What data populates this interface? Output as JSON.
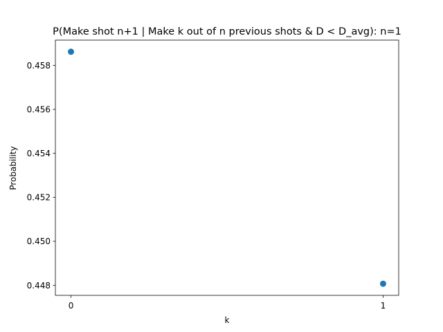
{
  "chart_data": {
    "type": "scatter",
    "title": "P(Make shot n+1 | Make k out of n previous shots & D < D_avg): n=1",
    "xlabel": "k",
    "ylabel": "Probability",
    "x": [
      0,
      1
    ],
    "y": [
      0.45862,
      0.44807
    ],
    "xticks": [
      0,
      1
    ],
    "xtick_labels": [
      "0",
      "1"
    ],
    "yticks": [
      0.448,
      0.45,
      0.452,
      0.454,
      0.456,
      0.458
    ],
    "ytick_labels": [
      "0.448",
      "0.450",
      "0.452",
      "0.454",
      "0.456",
      "0.458"
    ],
    "xlim": [
      -0.05,
      1.05
    ],
    "ylim": [
      0.447543,
      0.459148
    ],
    "grid": false,
    "marker_color": "#1f77b4"
  }
}
